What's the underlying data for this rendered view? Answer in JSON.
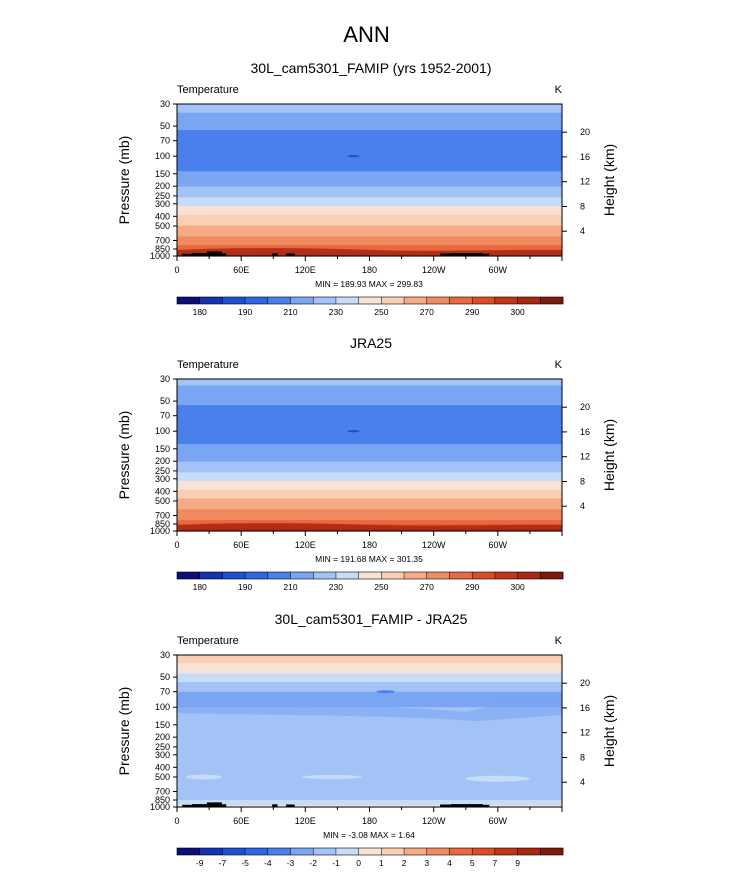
{
  "figure": {
    "title": "ANN"
  },
  "chart_data": [
    {
      "type": "heatmap",
      "title": "30L_cam5301_FAMIP (yrs 1952-2001)",
      "variable": "Temperature",
      "units": "K",
      "ylabel": "Pressure (mb)",
      "ylabel_right": "Height (km)",
      "x_ticks": [
        "0",
        "60E",
        "120E",
        "180",
        "120W",
        "60W"
      ],
      "x_tick_lons": [
        0,
        60,
        120,
        180,
        240,
        300
      ],
      "xlim": [
        0,
        360
      ],
      "y_ticks": [
        "30",
        "50",
        "70",
        "100",
        "150",
        "200",
        "250",
        "300",
        "400",
        "500",
        "700",
        "850",
        "1000"
      ],
      "y_tick_values": [
        30,
        50,
        70,
        100,
        150,
        200,
        250,
        300,
        400,
        500,
        700,
        850,
        1000
      ],
      "ylim": [
        30,
        1000
      ],
      "height_ticks": [
        "4",
        "8",
        "12",
        "16",
        "20"
      ],
      "height_values": [
        4,
        8,
        12,
        16,
        20
      ],
      "stats": "MIN = 189.93  MAX = 299.83",
      "colorbar_labels": [
        "180",
        "190",
        "210",
        "230",
        "250",
        "270",
        "290",
        "300"
      ],
      "colorbar_label_boxes": [
        1,
        3,
        5,
        7,
        9,
        11,
        13,
        15
      ],
      "colorbar_colors": [
        "#0a0f78",
        "#1432b4",
        "#1e50d2",
        "#2d66e6",
        "#4a80ee",
        "#7aa5f3",
        "#a3c2f6",
        "#c6dcf8",
        "#f7e3d6",
        "#fbcfb3",
        "#f6aa85",
        "#f08a5f",
        "#e8683f",
        "#dc4c26",
        "#c23518",
        "#a92812",
        "#7d1a0c"
      ],
      "profile": [
        {
          "p": 30,
          "v": 227.0
        },
        {
          "p": 35,
          "v": 221.0
        },
        {
          "p": 42,
          "v": 216.0
        },
        {
          "p": 50,
          "v": 211.5
        },
        {
          "p": 60,
          "v": 209.0
        },
        {
          "p": 70,
          "v": 207.0
        },
        {
          "p": 85,
          "v": 206.0
        },
        {
          "p": 100,
          "v": 205.5
        },
        {
          "p": 120,
          "v": 207.0
        },
        {
          "p": 150,
          "v": 211.0
        },
        {
          "p": 175,
          "v": 215.0
        },
        {
          "p": 200,
          "v": 219.5
        },
        {
          "p": 250,
          "v": 228.5
        },
        {
          "p": 300,
          "v": 237.0
        },
        {
          "p": 350,
          "v": 244.5
        },
        {
          "p": 400,
          "v": 251.0
        },
        {
          "p": 500,
          "v": 261.0
        },
        {
          "p": 600,
          "v": 268.5
        },
        {
          "p": 700,
          "v": 275.0
        },
        {
          "p": 850,
          "v": 283.0
        },
        {
          "p": 1000,
          "v": 290.0
        }
      ],
      "terrain": [
        [
          5,
          14,
          950
        ],
        [
          14,
          28,
          935
        ],
        [
          28,
          42,
          900
        ],
        [
          42,
          46,
          940
        ],
        [
          89,
          94,
          940
        ],
        [
          102,
          110,
          945
        ],
        [
          246,
          256,
          945
        ],
        [
          256,
          286,
          935
        ],
        [
          286,
          292,
          950
        ]
      ]
    },
    {
      "type": "heatmap",
      "title": "JRA25",
      "variable": "Temperature",
      "units": "K",
      "ylabel": "Pressure (mb)",
      "ylabel_right": "Height (km)",
      "x_ticks": [
        "0",
        "60E",
        "120E",
        "180",
        "120W",
        "60W"
      ],
      "x_tick_lons": [
        0,
        60,
        120,
        180,
        240,
        300
      ],
      "xlim": [
        0,
        360
      ],
      "y_ticks": [
        "30",
        "50",
        "70",
        "100",
        "150",
        "200",
        "250",
        "300",
        "400",
        "500",
        "700",
        "850",
        "1000"
      ],
      "y_tick_values": [
        30,
        50,
        70,
        100,
        150,
        200,
        250,
        300,
        400,
        500,
        700,
        850,
        1000
      ],
      "ylim": [
        30,
        1000
      ],
      "height_ticks": [
        "4",
        "8",
        "12",
        "16",
        "20"
      ],
      "height_values": [
        4,
        8,
        12,
        16,
        20
      ],
      "stats": "MIN = 191.68  MAX = 301.35",
      "colorbar_labels": [
        "180",
        "190",
        "210",
        "230",
        "250",
        "270",
        "290",
        "300"
      ],
      "colorbar_label_boxes": [
        1,
        3,
        5,
        7,
        9,
        11,
        13,
        15
      ],
      "colorbar_colors": [
        "#0a0f78",
        "#1432b4",
        "#1e50d2",
        "#2d66e6",
        "#4a80ee",
        "#7aa5f3",
        "#a3c2f6",
        "#c6dcf8",
        "#f7e3d6",
        "#fbcfb3",
        "#f6aa85",
        "#f08a5f",
        "#e8683f",
        "#dc4c26",
        "#c23518",
        "#a92812",
        "#7d1a0c"
      ],
      "profile": [
        {
          "p": 30,
          "v": 226.0
        },
        {
          "p": 35,
          "v": 220.0
        },
        {
          "p": 42,
          "v": 215.0
        },
        {
          "p": 50,
          "v": 211.0
        },
        {
          "p": 60,
          "v": 209.0
        },
        {
          "p": 70,
          "v": 207.5
        },
        {
          "p": 85,
          "v": 206.5
        },
        {
          "p": 100,
          "v": 206.0
        },
        {
          "p": 120,
          "v": 208.0
        },
        {
          "p": 150,
          "v": 212.0
        },
        {
          "p": 175,
          "v": 216.0
        },
        {
          "p": 200,
          "v": 220.5
        },
        {
          "p": 250,
          "v": 229.5
        },
        {
          "p": 300,
          "v": 238.0
        },
        {
          "p": 350,
          "v": 245.5
        },
        {
          "p": 400,
          "v": 252.0
        },
        {
          "p": 500,
          "v": 262.0
        },
        {
          "p": 600,
          "v": 269.5
        },
        {
          "p": 700,
          "v": 276.0
        },
        {
          "p": 850,
          "v": 284.0
        },
        {
          "p": 1000,
          "v": 291.5
        }
      ],
      "terrain": []
    },
    {
      "type": "heatmap",
      "title": "30L_cam5301_FAMIP - JRA25",
      "variable": "Temperature",
      "units": "K",
      "ylabel": "Pressure (mb)",
      "ylabel_right": "Height (km)",
      "x_ticks": [
        "0",
        "60E",
        "120E",
        "180",
        "120W",
        "60W"
      ],
      "x_tick_lons": [
        0,
        60,
        120,
        180,
        240,
        300
      ],
      "xlim": [
        0,
        360
      ],
      "y_ticks": [
        "30",
        "50",
        "70",
        "100",
        "150",
        "200",
        "250",
        "300",
        "400",
        "500",
        "700",
        "850",
        "1000"
      ],
      "y_tick_values": [
        30,
        50,
        70,
        100,
        150,
        200,
        250,
        300,
        400,
        500,
        700,
        850,
        1000
      ],
      "ylim": [
        30,
        1000
      ],
      "height_ticks": [
        "4",
        "8",
        "12",
        "16",
        "20"
      ],
      "height_values": [
        4,
        8,
        12,
        16,
        20
      ],
      "stats": "MIN =  -3.08  MAX =   1.64",
      "colorbar_labels": [
        "-9",
        "-7",
        "-5",
        "-4",
        "-3",
        "-2",
        "-1",
        "0",
        "1",
        "2",
        "3",
        "4",
        "5",
        "7",
        "9"
      ],
      "colorbar_label_boxes": [
        1,
        2,
        3,
        4,
        5,
        6,
        7,
        8,
        9,
        10,
        11,
        12,
        13,
        14,
        15
      ],
      "colorbar_colors": [
        "#0a0f78",
        "#1432b4",
        "#1e50d2",
        "#2d66e6",
        "#4a80ee",
        "#7aa5f3",
        "#a3c2f6",
        "#c6dcf8",
        "#f7e3d6",
        "#fbcfb3",
        "#f6aa85",
        "#f08a5f",
        "#e8683f",
        "#dc4c26",
        "#c23518",
        "#a92812",
        "#7d1a0c"
      ],
      "diff_bands": [
        {
          "p_top": 30,
          "p_bot": 36,
          "color": "#fbcfb3"
        },
        {
          "p_top": 36,
          "p_bot": 46,
          "color": "#f7e3d6"
        },
        {
          "p_top": 46,
          "p_bot": 56,
          "color": "#c6dcf8"
        },
        {
          "p_top": 56,
          "p_bot": 70,
          "color": "#a3c2f6"
        },
        {
          "p_top": 70,
          "p_bot": 100,
          "color": "#7aa5f3"
        },
        {
          "p_top": 100,
          "p_bot": 1000,
          "color": "#a3c2f6"
        }
      ],
      "terrain": [
        [
          5,
          14,
          950
        ],
        [
          14,
          28,
          935
        ],
        [
          28,
          42,
          900
        ],
        [
          42,
          46,
          940
        ],
        [
          89,
          94,
          940
        ],
        [
          102,
          110,
          945
        ],
        [
          246,
          256,
          945
        ],
        [
          256,
          286,
          935
        ],
        [
          286,
          292,
          950
        ]
      ]
    }
  ]
}
